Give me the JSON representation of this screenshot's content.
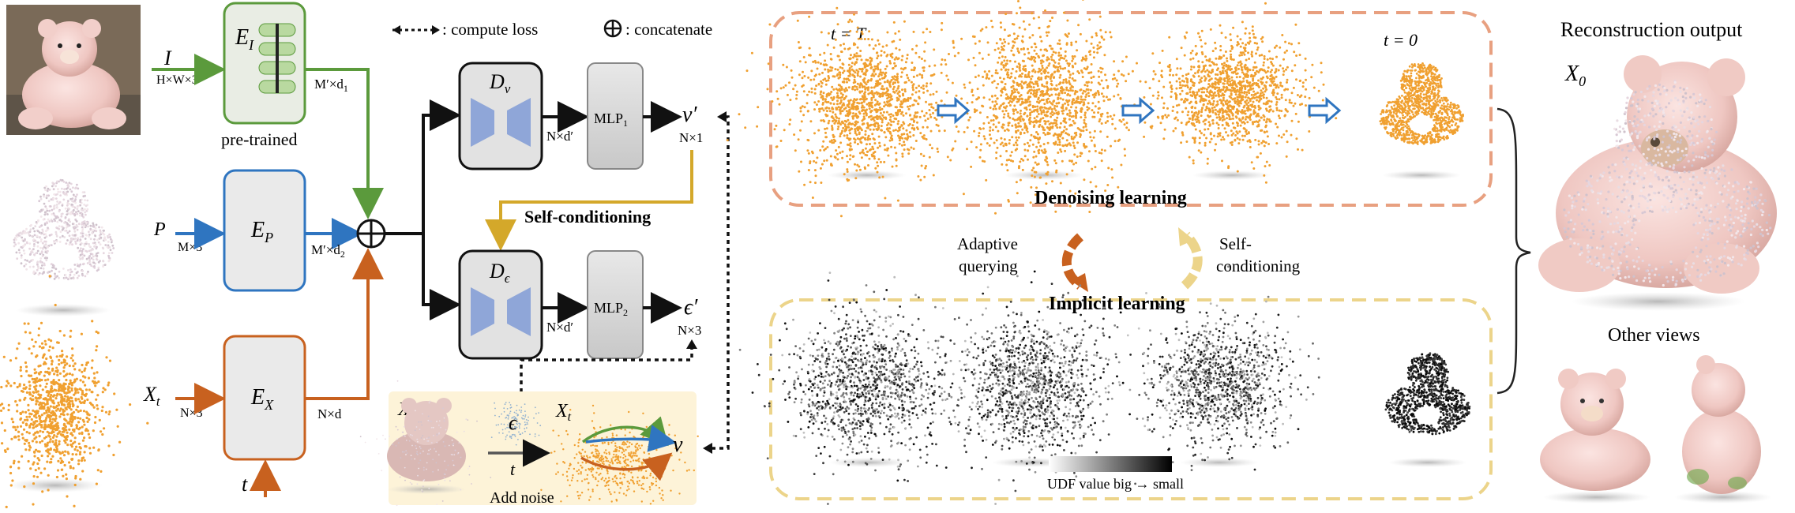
{
  "legend": {
    "compute_loss": ": compute loss",
    "concatenate": ": concatenate"
  },
  "inputs": {
    "image_symbol": "I",
    "image_shape": "H×W×3",
    "points_symbol": "P",
    "points_shape": "M×3",
    "noisy_symbol": "X",
    "noisy_sub": "t",
    "noisy_shape": "N×3",
    "time_symbol": "t"
  },
  "encoders": {
    "image_encoder": "E",
    "image_encoder_sub": "I",
    "image_note": "pre-trained",
    "image_out": "M′×d",
    "image_out_sub": "1",
    "points_encoder": "E",
    "points_encoder_sub": "P",
    "points_out": "M′×d",
    "points_out_sub": "2",
    "noisy_encoder": "E",
    "noisy_encoder_sub": "X",
    "noisy_out": "N×d"
  },
  "decoders": {
    "v_decoder": "D",
    "v_decoder_sub": "ν",
    "v_out_shape": "N×d′",
    "mlp1": "MLP",
    "mlp1_sub": "1",
    "v_output": "ν′",
    "v_output_shape": "N×1",
    "eps_decoder": "D",
    "eps_decoder_sub": "ϵ",
    "eps_out_shape": "N×d′",
    "mlp2": "MLP",
    "mlp2_sub": "2",
    "eps_output": "ϵ′",
    "eps_output_shape": "N×3"
  },
  "self_conditioning_label": "Self-conditioning",
  "add_noise": {
    "x_label": "X",
    "eps_label": "ϵ",
    "t_label": "t",
    "xt_label": "X",
    "xt_sub": "t",
    "v_label": "ν",
    "caption": "Add noise"
  },
  "denoising": {
    "t_start": "t = T",
    "t_end": "t = 0",
    "title": "Denoising learning"
  },
  "cycle": {
    "left_line1": "Adaptive",
    "left_line2": "querying",
    "right_line1": "Self-",
    "right_line2": "conditioning"
  },
  "implicit": {
    "title": "Implicit learning",
    "udf_caption": "UDF value big → small"
  },
  "output": {
    "title": "Reconstruction output",
    "x0": "X",
    "x0_sub": "0",
    "other_views": "Other views"
  },
  "colors": {
    "green": "#5b9a3c",
    "blue": "#2f75c0",
    "orange_line": "#c8611f",
    "orange_points": "#f0a030",
    "gold": "#d4a82a",
    "decoder_fill": "#8fa6d8",
    "dashed_orange": "#e8a080",
    "dashed_yellow": "#ecd48a",
    "add_noise_bg": "#fdf3d8"
  }
}
